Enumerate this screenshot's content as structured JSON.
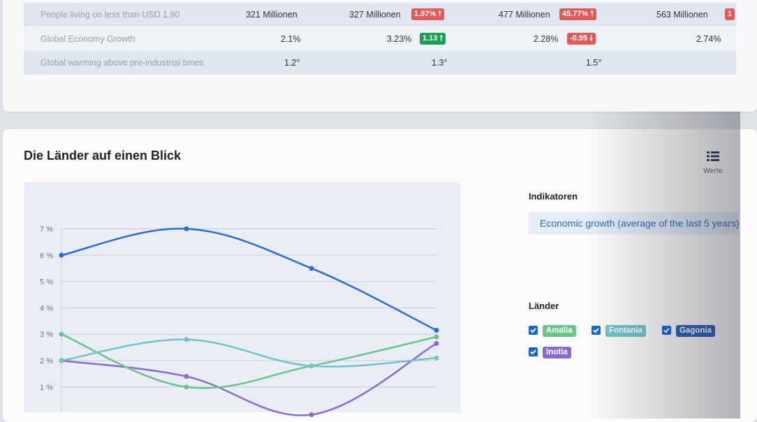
{
  "table": {
    "rows": [
      {
        "label": "People living on less than USD 1.90",
        "c1": "321 Millionen",
        "c2": "327 Millionen",
        "b2": "1.97%",
        "b2_dir": "up",
        "b2_color": "#e05a5a",
        "c3": "477 Millionen",
        "b3": "45.77%",
        "b3_dir": "up",
        "b3_color": "#e05a5a",
        "c4": "563 Millionen",
        "b4": "1"
      },
      {
        "label": "Global Economy Growth",
        "c1": "2.1%",
        "c2": "3.23%",
        "b2": "1.13",
        "b2_dir": "up",
        "b2_color": "#1aa053",
        "c3": "2.28%",
        "b3": "-0.95",
        "b3_dir": "down",
        "b3_color": "#e05a5a",
        "c4": "2.74%"
      },
      {
        "label": "Global warming above pre-industrial times",
        "c1": "1.2°",
        "c2": "1.3°",
        "c3": "1.5°"
      }
    ]
  },
  "section": {
    "title": "Die Länder auf einen Blick",
    "view_label": "Werte",
    "indicators_heading": "Indikatoren",
    "indicator_selected": "Economic growth (average of the last 5 years)",
    "countries_heading": "Länder"
  },
  "countries": [
    {
      "name": "Amalia",
      "color": "#6cc38a",
      "checked": true
    },
    {
      "name": "Fontania",
      "color": "#74c2c8",
      "checked": true
    },
    {
      "name": "Gagonia",
      "color": "#2d5fb8",
      "checked": true
    },
    {
      "name": "Inotia",
      "color": "#8a6bcc",
      "checked": true
    }
  ],
  "chart_data": {
    "type": "line",
    "y_ticks": [
      "7 %",
      "6 %",
      "5 %",
      "4 %",
      "3 %",
      "2 %",
      "1 %"
    ],
    "ylim": [
      0,
      7
    ],
    "x_points": 4,
    "series": [
      {
        "name": "Gagonia",
        "color": "#2f6ad0",
        "values": [
          6.0,
          7.0,
          5.5,
          3.15
        ]
      },
      {
        "name": "Fontania",
        "color": "#74c2c8",
        "values": [
          2.0,
          2.8,
          1.8,
          2.1
        ]
      },
      {
        "name": "Amalia",
        "color": "#6cc38a",
        "values": [
          3.0,
          1.0,
          1.8,
          2.9
        ]
      },
      {
        "name": "Inotia",
        "color": "#8a6bcc",
        "values": [
          2.0,
          1.4,
          -0.05,
          2.65
        ]
      }
    ]
  }
}
